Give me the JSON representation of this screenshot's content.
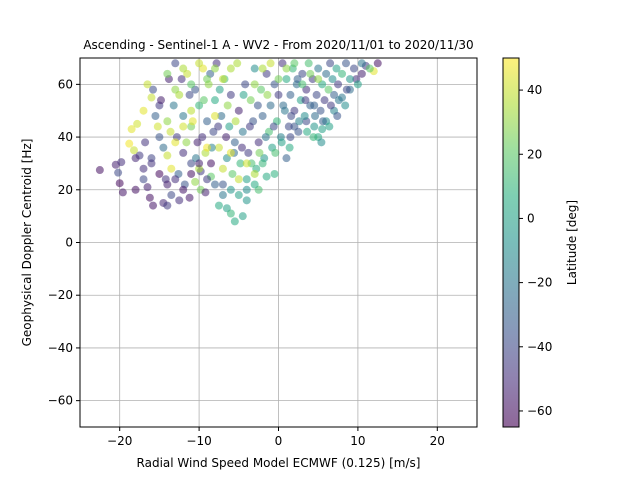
{
  "chart_data": {
    "type": "scatter",
    "title": "Ascending - Sentinel-1 A - WV2 - From 2020/11/01 to 2020/11/30",
    "xlabel": "Radial Wind Speed Model ECMWF (0.125) [m/s]",
    "ylabel": "Geophysical Doppler Centroid [Hz]",
    "xlim": [
      -25,
      25
    ],
    "ylim": [
      -70,
      70
    ],
    "x_ticks": [
      -20,
      -10,
      0,
      10,
      20
    ],
    "y_ticks": [
      -60,
      -40,
      -20,
      0,
      20,
      40,
      60
    ],
    "grid": true,
    "colorbar": {
      "label": "Latitude [deg]",
      "range": [
        -65,
        50
      ],
      "ticks": [
        -60,
        -40,
        -20,
        0,
        20,
        40
      ],
      "colormap": "viridis"
    },
    "marker_alpha": 0.55,
    "points": [
      [
        -22.5,
        27.5,
        -60
      ],
      [
        -20.5,
        29.5,
        -55
      ],
      [
        -19.8,
        30.5,
        -50
      ],
      [
        -20.2,
        26.5,
        -40
      ],
      [
        -19.6,
        19,
        -58
      ],
      [
        -20,
        22.5,
        -62
      ],
      [
        -18.5,
        43,
        45
      ],
      [
        -18.2,
        35,
        40
      ],
      [
        -18.8,
        37.5,
        48
      ],
      [
        -17.8,
        45,
        42
      ],
      [
        -17.5,
        33,
        -45
      ],
      [
        -17,
        28,
        -50
      ],
      [
        -16.5,
        21,
        -55
      ],
      [
        -16.2,
        17,
        -60
      ],
      [
        -15.8,
        14,
        -58
      ],
      [
        -14.5,
        15,
        -52
      ],
      [
        -14,
        14,
        -45
      ],
      [
        -13.5,
        18,
        -40
      ],
      [
        -12.5,
        16,
        -50
      ],
      [
        -11.8,
        22,
        -35
      ],
      [
        -11.2,
        17,
        -58
      ],
      [
        -10.5,
        23,
        30
      ],
      [
        -9.8,
        20,
        25
      ],
      [
        -9.2,
        19,
        -55
      ],
      [
        -8.5,
        25,
        20
      ],
      [
        -7.5,
        14,
        5
      ],
      [
        -6.5,
        13,
        0
      ],
      [
        -6,
        11,
        10
      ],
      [
        -5.5,
        8,
        5
      ],
      [
        -4.5,
        10,
        0
      ],
      [
        -4,
        16,
        -5
      ],
      [
        -2.5,
        20,
        15
      ],
      [
        -1.5,
        25,
        5
      ],
      [
        -0.5,
        26,
        8
      ],
      [
        1,
        32,
        -30
      ],
      [
        1.5,
        40,
        -40
      ],
      [
        2,
        44,
        -35
      ],
      [
        3.5,
        46,
        -40
      ],
      [
        4.5,
        52,
        -30
      ],
      [
        5,
        40,
        5
      ],
      [
        5.5,
        43,
        0
      ],
      [
        6,
        46,
        -10
      ],
      [
        7,
        50,
        -15
      ],
      [
        8,
        55,
        -20
      ],
      [
        9,
        58,
        -25
      ],
      [
        9.8,
        62,
        -50
      ],
      [
        10.5,
        64,
        -55
      ],
      [
        11,
        67,
        -45
      ],
      [
        12,
        65,
        45
      ],
      [
        12.5,
        68,
        -60
      ],
      [
        11.5,
        66,
        20
      ],
      [
        -16,
        55,
        40
      ],
      [
        -15.5,
        48,
        -30
      ],
      [
        -15,
        40,
        -35
      ],
      [
        -15,
        52,
        -45
      ],
      [
        -14.5,
        36,
        -25
      ],
      [
        -14,
        46,
        30
      ],
      [
        -13.8,
        62,
        -55
      ],
      [
        -13.5,
        28,
        45
      ],
      [
        -13,
        68,
        -40
      ],
      [
        -12.8,
        40,
        -45
      ],
      [
        -12.5,
        56,
        35
      ],
      [
        -12,
        34,
        -50
      ],
      [
        -12,
        48,
        -20
      ],
      [
        -11.5,
        64,
        40
      ],
      [
        -11,
        30,
        -40
      ],
      [
        -11,
        44,
        25
      ],
      [
        -10.5,
        58,
        -35
      ],
      [
        -10.2,
        38,
        -55
      ],
      [
        -10,
        52,
        10
      ],
      [
        -9.8,
        27,
        -45
      ],
      [
        -9.5,
        66,
        45
      ],
      [
        -9.2,
        34,
        35
      ],
      [
        -9,
        46,
        -30
      ],
      [
        -8.8,
        60,
        30
      ],
      [
        -8.5,
        30,
        -60
      ],
      [
        -8.2,
        42,
        -40
      ],
      [
        -8,
        54,
        5
      ],
      [
        -7.8,
        68,
        -50
      ],
      [
        -7.5,
        36,
        40
      ],
      [
        -7.2,
        48,
        -25
      ],
      [
        -7,
        22,
        -35
      ],
      [
        -6.8,
        62,
        15
      ],
      [
        -6.5,
        32,
        -10
      ],
      [
        -6.2,
        44,
        0
      ],
      [
        -6,
        56,
        -45
      ],
      [
        -5.8,
        26,
        20
      ],
      [
        -5.5,
        38,
        -30
      ],
      [
        -5.2,
        68,
        35
      ],
      [
        -5,
        50,
        -55
      ],
      [
        -4.8,
        30,
        10
      ],
      [
        -4.5,
        42,
        -20
      ],
      [
        -4.2,
        60,
        -40
      ],
      [
        -4,
        24,
        0
      ],
      [
        -3.8,
        34,
        -45
      ],
      [
        -3.5,
        54,
        25
      ],
      [
        -3.2,
        46,
        -35
      ],
      [
        -3,
        66,
        -10
      ],
      [
        -2.8,
        28,
        5
      ],
      [
        -2.5,
        38,
        -50
      ],
      [
        -2.2,
        58,
        20
      ],
      [
        -2,
        48,
        -30
      ],
      [
        -1.8,
        32,
        -5
      ],
      [
        -1.5,
        64,
        -45
      ],
      [
        -1.2,
        42,
        15
      ],
      [
        -1,
        52,
        -25
      ],
      [
        -0.8,
        36,
        0
      ],
      [
        -0.5,
        60,
        -35
      ],
      [
        -0.2,
        46,
        10
      ],
      [
        0,
        56,
        -45
      ],
      [
        0.3,
        40,
        -15
      ],
      [
        0.5,
        68,
        -50
      ],
      [
        0.8,
        50,
        -20
      ],
      [
        1,
        62,
        5
      ],
      [
        1.3,
        44,
        -40
      ],
      [
        1.5,
        56,
        -30
      ],
      [
        1.8,
        66,
        10
      ],
      [
        2,
        50,
        -45
      ],
      [
        2.3,
        60,
        -25
      ],
      [
        2.5,
        42,
        -35
      ],
      [
        2.8,
        54,
        0
      ],
      [
        3,
        64,
        -40
      ],
      [
        3.3,
        48,
        -10
      ],
      [
        3.5,
        58,
        -50
      ],
      [
        3.8,
        68,
        15
      ],
      [
        4,
        52,
        -30
      ],
      [
        4.3,
        62,
        -45
      ],
      [
        4.5,
        44,
        -5
      ],
      [
        4.8,
        56,
        -40
      ],
      [
        5,
        66,
        -20
      ],
      [
        5.3,
        50,
        -35
      ],
      [
        5.5,
        60,
        5
      ],
      [
        5.8,
        54,
        -45
      ],
      [
        6,
        64,
        -25
      ],
      [
        6.3,
        58,
        20
      ],
      [
        6.5,
        68,
        -40
      ],
      [
        6.8,
        62,
        -10
      ],
      [
        7,
        56,
        -30
      ],
      [
        7.3,
        66,
        0
      ],
      [
        7.5,
        60,
        -45
      ],
      [
        8,
        64,
        10
      ],
      [
        8.5,
        68,
        -35
      ],
      [
        9,
        62,
        -5
      ],
      [
        9.5,
        66,
        -40
      ],
      [
        10,
        60,
        0
      ],
      [
        10.5,
        68,
        -20
      ],
      [
        -17,
        50,
        45
      ],
      [
        -16.8,
        38,
        -48
      ],
      [
        -16.5,
        60,
        40
      ],
      [
        -16,
        32,
        -42
      ],
      [
        -15.8,
        58,
        -38
      ],
      [
        -15.2,
        44,
        42
      ],
      [
        -14.8,
        54,
        -56
      ],
      [
        -14.2,
        24,
        -48
      ],
      [
        -13.6,
        42,
        40
      ],
      [
        -13.2,
        52,
        -20
      ],
      [
        -12.6,
        26,
        -30
      ],
      [
        -12.2,
        62,
        -50
      ],
      [
        -11.6,
        38,
        30
      ],
      [
        -11.2,
        56,
        -40
      ],
      [
        -10.8,
        46,
        45
      ],
      [
        -10.4,
        32,
        -20
      ],
      [
        -9.6,
        40,
        -50
      ],
      [
        -9.4,
        54,
        20
      ],
      [
        -8.6,
        64,
        -30
      ],
      [
        -8.4,
        36,
        -15
      ],
      [
        -7.6,
        44,
        -45
      ],
      [
        -7.4,
        58,
        0
      ],
      [
        -6.6,
        40,
        -55
      ],
      [
        -6.4,
        52,
        30
      ],
      [
        -5.6,
        34,
        -25
      ],
      [
        -5.4,
        46,
        35
      ],
      [
        -4.6,
        36,
        -50
      ],
      [
        -4.4,
        56,
        0
      ],
      [
        -3.6,
        44,
        -45
      ],
      [
        -3.4,
        30,
        15
      ],
      [
        -2.6,
        52,
        -35
      ],
      [
        -2.4,
        34,
        25
      ],
      [
        -1.6,
        40,
        -20
      ],
      [
        -1.4,
        56,
        30
      ],
      [
        -0.6,
        44,
        -40
      ],
      [
        -0.4,
        34,
        15
      ],
      [
        0.6,
        52,
        -25
      ],
      [
        0.4,
        38,
        0
      ],
      [
        1.6,
        48,
        -40
      ],
      [
        1.4,
        36,
        5
      ],
      [
        2.6,
        46,
        -15
      ],
      [
        2.4,
        62,
        -30
      ],
      [
        3.6,
        42,
        5
      ],
      [
        3.4,
        54,
        -45
      ],
      [
        4.6,
        48,
        -25
      ],
      [
        4.4,
        40,
        10
      ],
      [
        5.6,
        46,
        -30
      ],
      [
        5.4,
        38,
        -10
      ],
      [
        6.6,
        52,
        -45
      ],
      [
        6.4,
        44,
        0
      ],
      [
        7.6,
        54,
        -20
      ],
      [
        7.4,
        48,
        -35
      ],
      [
        8.6,
        58,
        -40
      ],
      [
        8.4,
        52,
        -10
      ],
      [
        -14,
        33,
        40
      ],
      [
        -13,
        38,
        45
      ],
      [
        -12,
        44,
        42
      ],
      [
        -11,
        50,
        38
      ],
      [
        -10,
        28,
        35
      ],
      [
        -9,
        36,
        48
      ],
      [
        -8,
        48,
        44
      ],
      [
        -7,
        28,
        40
      ],
      [
        -6,
        34,
        45
      ],
      [
        -5,
        24,
        40
      ],
      [
        -4,
        30,
        42
      ],
      [
        -3,
        26,
        35
      ],
      [
        -6,
        20,
        -5
      ],
      [
        -5,
        18,
        0
      ],
      [
        -4,
        20,
        -10
      ],
      [
        -3,
        22,
        5
      ],
      [
        -2,
        30,
        10
      ],
      [
        -7,
        18,
        -20
      ],
      [
        -8,
        22,
        -30
      ],
      [
        -9,
        24,
        -45
      ],
      [
        -10,
        30,
        -55
      ],
      [
        -11,
        26,
        -60
      ],
      [
        -12,
        20,
        -58
      ],
      [
        -13,
        24,
        -50
      ],
      [
        -14,
        22,
        -55
      ],
      [
        -15,
        26,
        -62
      ],
      [
        -16,
        30,
        -48
      ],
      [
        -17,
        24,
        -40
      ],
      [
        -18,
        32,
        -52
      ],
      [
        -18,
        20,
        -60
      ],
      [
        -3,
        60,
        30
      ],
      [
        -2,
        66,
        35
      ],
      [
        -1,
        68,
        40
      ],
      [
        0,
        62,
        25
      ],
      [
        1,
        66,
        30
      ],
      [
        2,
        68,
        20
      ],
      [
        3,
        60,
        15
      ],
      [
        4,
        64,
        25
      ],
      [
        5,
        62,
        30
      ],
      [
        -6,
        66,
        35
      ],
      [
        -7,
        62,
        40
      ],
      [
        -8,
        66,
        30
      ],
      [
        -9,
        62,
        25
      ],
      [
        -10,
        68,
        40
      ],
      [
        -11,
        60,
        20
      ],
      [
        -12,
        66,
        35
      ],
      [
        -13,
        58,
        30
      ],
      [
        -14,
        64,
        25
      ]
    ]
  }
}
